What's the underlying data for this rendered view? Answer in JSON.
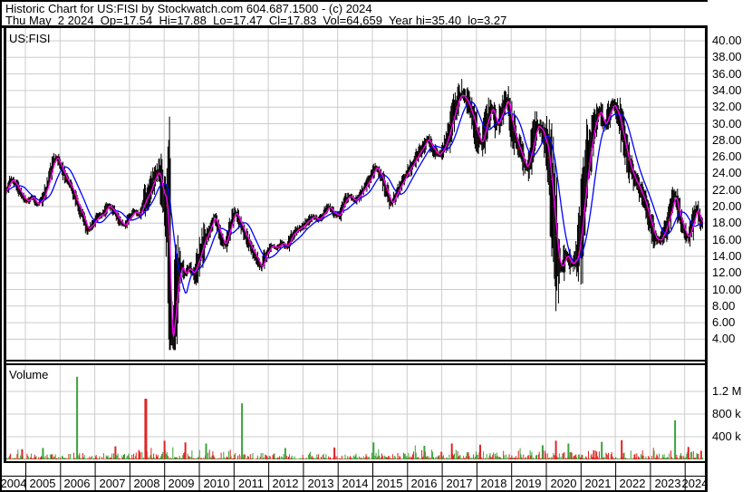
{
  "header": {
    "line1": "Historic Chart for US:FISI by Stockwatch.com 604.687.1500 - (c) 2024",
    "line2": "Thu May  2 2024  Op=17.54  Hi=17.88  Lo=17.47  Cl=17.83  Vol=64,659  Year hi=35.40  lo=3.27"
  },
  "quote": {
    "date": "Thu May 2 2024",
    "open": 17.54,
    "high": 17.88,
    "low": 17.47,
    "close": 17.83,
    "volume": "64,659",
    "year_high": 35.4,
    "year_low": 3.27
  },
  "colors": {
    "background": "#ffffff",
    "grid": "#cccccc",
    "border": "#000000",
    "bars": "#000000",
    "close_tick": "#ff0000",
    "ma_short": "#ff00ff",
    "ma_long": "#0000ff",
    "volume_up": "#3aa33a",
    "volume_down": "#e22222",
    "text": "#000000"
  },
  "chart_data": {
    "type": "ohlc",
    "symbol": "US:FISI",
    "price_label": "US:FISI",
    "volume_label": "Volume",
    "panels": [
      "price",
      "volume"
    ],
    "x_years": [
      2004,
      2005,
      2006,
      2007,
      2008,
      2009,
      2010,
      2011,
      2012,
      2013,
      2014,
      2015,
      2016,
      2017,
      2018,
      2019,
      2020,
      2021,
      2022,
      2023,
      2024
    ],
    "price_axis": {
      "min": 4,
      "max": 40,
      "step": 2,
      "ticks": [
        "40.00",
        "38.00",
        "36.00",
        "34.00",
        "32.00",
        "30.00",
        "28.00",
        "26.00",
        "24.00",
        "22.00",
        "20.00",
        "18.00",
        "16.00",
        "14.00",
        "12.00",
        "10.00",
        "8.00",
        "6.00",
        "4.00"
      ]
    },
    "volume_axis": {
      "ticks": [
        {
          "label": "1.2 M",
          "value_k": 1200
        },
        {
          "label": "800 k",
          "value_k": 800
        },
        {
          "label": "400 k",
          "value_k": 400
        }
      ]
    },
    "overlays": [
      {
        "name": "short-moving-average",
        "color": "#ff00ff"
      },
      {
        "name": "long-moving-average",
        "color": "#0000ff"
      }
    ],
    "year_high_point": [
      2017.57,
      35.4
    ],
    "year_low_point": [
      2009.21,
      3.27
    ],
    "series": {
      "close_anchors": [
        [
          2004.45,
          22.0
        ],
        [
          2004.6,
          23.3
        ],
        [
          2004.75,
          22.6
        ],
        [
          2004.9,
          21.4
        ],
        [
          2005.05,
          20.6
        ],
        [
          2005.2,
          21.2
        ],
        [
          2005.35,
          20.2
        ],
        [
          2005.5,
          20.9
        ],
        [
          2005.65,
          22.6
        ],
        [
          2005.8,
          25.2
        ],
        [
          2005.9,
          26.0
        ],
        [
          2006.05,
          24.6
        ],
        [
          2006.2,
          23.2
        ],
        [
          2006.35,
          22.2
        ],
        [
          2006.5,
          20.4
        ],
        [
          2006.65,
          19.0
        ],
        [
          2006.8,
          17.2
        ],
        [
          2006.95,
          17.9
        ],
        [
          2007.1,
          18.8
        ],
        [
          2007.25,
          19.1
        ],
        [
          2007.4,
          20.2
        ],
        [
          2007.55,
          19.5
        ],
        [
          2007.7,
          18.4
        ],
        [
          2007.85,
          17.7
        ],
        [
          2008.0,
          18.6
        ],
        [
          2008.15,
          19.4
        ],
        [
          2008.3,
          19.0
        ],
        [
          2008.45,
          20.7
        ],
        [
          2008.6,
          21.9
        ],
        [
          2008.75,
          23.7
        ],
        [
          2008.85,
          24.2
        ],
        [
          2008.95,
          22.0
        ],
        [
          2009.05,
          20.8
        ],
        [
          2009.13,
          16.5
        ],
        [
          2009.2,
          3.4
        ],
        [
          2009.28,
          5.6
        ],
        [
          2009.38,
          10.6
        ],
        [
          2009.5,
          12.9
        ],
        [
          2009.6,
          11.8
        ],
        [
          2009.7,
          12.6
        ],
        [
          2009.85,
          11.9
        ],
        [
          2010.0,
          13.6
        ],
        [
          2010.15,
          15.7
        ],
        [
          2010.3,
          17.1
        ],
        [
          2010.45,
          18.8
        ],
        [
          2010.6,
          16.9
        ],
        [
          2010.75,
          15.3
        ],
        [
          2010.9,
          17.4
        ],
        [
          2011.05,
          19.4
        ],
        [
          2011.2,
          18.0
        ],
        [
          2011.35,
          16.6
        ],
        [
          2011.5,
          15.1
        ],
        [
          2011.65,
          14.0
        ],
        [
          2011.8,
          12.6
        ],
        [
          2011.95,
          14.3
        ],
        [
          2012.1,
          15.3
        ],
        [
          2012.25,
          15.0
        ],
        [
          2012.4,
          15.6
        ],
        [
          2012.55,
          15.2
        ],
        [
          2012.7,
          16.6
        ],
        [
          2012.85,
          17.2
        ],
        [
          2013.0,
          17.6
        ],
        [
          2013.15,
          18.3
        ],
        [
          2013.3,
          18.8
        ],
        [
          2013.45,
          18.4
        ],
        [
          2013.6,
          19.1
        ],
        [
          2013.75,
          20.0
        ],
        [
          2013.9,
          19.2
        ],
        [
          2014.05,
          18.9
        ],
        [
          2014.2,
          20.6
        ],
        [
          2014.35,
          21.3
        ],
        [
          2014.5,
          20.7
        ],
        [
          2014.65,
          21.4
        ],
        [
          2014.8,
          22.4
        ],
        [
          2014.95,
          23.4
        ],
        [
          2015.1,
          24.8
        ],
        [
          2015.25,
          23.8
        ],
        [
          2015.4,
          22.0
        ],
        [
          2015.55,
          20.3
        ],
        [
          2015.7,
          21.6
        ],
        [
          2015.85,
          22.8
        ],
        [
          2016.0,
          24.0
        ],
        [
          2016.15,
          25.0
        ],
        [
          2016.3,
          26.1
        ],
        [
          2016.45,
          27.1
        ],
        [
          2016.6,
          28.2
        ],
        [
          2016.75,
          27.0
        ],
        [
          2016.9,
          26.2
        ],
        [
          2017.05,
          26.9
        ],
        [
          2017.2,
          28.6
        ],
        [
          2017.35,
          31.1
        ],
        [
          2017.5,
          33.2
        ],
        [
          2017.6,
          33.5
        ],
        [
          2017.75,
          32.6
        ],
        [
          2017.9,
          30.8
        ],
        [
          2018.05,
          28.4
        ],
        [
          2018.15,
          27.6
        ],
        [
          2018.3,
          30.2
        ],
        [
          2018.45,
          32.0
        ],
        [
          2018.6,
          29.8
        ],
        [
          2018.75,
          31.4
        ],
        [
          2018.9,
          33.0
        ],
        [
          2019.0,
          30.4
        ],
        [
          2019.15,
          28.0
        ],
        [
          2019.3,
          26.2
        ],
        [
          2019.45,
          24.6
        ],
        [
          2019.6,
          26.9
        ],
        [
          2019.75,
          29.8
        ],
        [
          2019.9,
          29.2
        ],
        [
          2020.05,
          27.0
        ],
        [
          2020.2,
          21.0
        ],
        [
          2020.35,
          13.8
        ],
        [
          2020.45,
          12.6
        ],
        [
          2020.6,
          14.2
        ],
        [
          2020.75,
          13.0
        ],
        [
          2020.9,
          13.7
        ],
        [
          2021.0,
          16.4
        ],
        [
          2021.1,
          20.6
        ],
        [
          2021.25,
          26.0
        ],
        [
          2021.4,
          29.8
        ],
        [
          2021.55,
          31.6
        ],
        [
          2021.7,
          29.8
        ],
        [
          2021.85,
          31.4
        ],
        [
          2021.95,
          32.4
        ],
        [
          2022.1,
          31.0
        ],
        [
          2022.25,
          28.0
        ],
        [
          2022.4,
          25.2
        ],
        [
          2022.55,
          23.4
        ],
        [
          2022.7,
          22.2
        ],
        [
          2022.85,
          20.6
        ],
        [
          2023.0,
          18.4
        ],
        [
          2023.15,
          16.2
        ],
        [
          2023.3,
          15.9
        ],
        [
          2023.45,
          17.2
        ],
        [
          2023.6,
          19.4
        ],
        [
          2023.72,
          21.4
        ],
        [
          2023.85,
          19.0
        ],
        [
          2024.0,
          17.0
        ],
        [
          2024.1,
          16.2
        ],
        [
          2024.25,
          18.2
        ],
        [
          2024.35,
          19.8
        ],
        [
          2024.45,
          18.4
        ],
        [
          2024.53,
          17.8
        ]
      ],
      "volume_spikes_k": [
        [
          2004.9,
          180,
          "down"
        ],
        [
          2005.5,
          200,
          "up"
        ],
        [
          2006.49,
          1460,
          "up"
        ],
        [
          2007.6,
          230,
          "down"
        ],
        [
          2008.47,
          1070,
          "down"
        ],
        [
          2009.0,
          330,
          "down"
        ],
        [
          2009.6,
          300,
          "down"
        ],
        [
          2010.2,
          280,
          "up"
        ],
        [
          2011.24,
          990,
          "up"
        ],
        [
          2012.5,
          200,
          "up"
        ],
        [
          2013.9,
          210,
          "down"
        ],
        [
          2015.03,
          300,
          "up"
        ],
        [
          2016.5,
          240,
          "up"
        ],
        [
          2017.3,
          280,
          "down"
        ],
        [
          2018.1,
          260,
          "down"
        ],
        [
          2019.9,
          250,
          "up"
        ],
        [
          2020.3,
          330,
          "down"
        ],
        [
          2020.64,
          280,
          "up"
        ],
        [
          2021.6,
          310,
          "up"
        ],
        [
          2022.18,
          340,
          "down"
        ],
        [
          2023.72,
          690,
          "up"
        ],
        [
          2024.1,
          220,
          "down"
        ]
      ]
    }
  }
}
